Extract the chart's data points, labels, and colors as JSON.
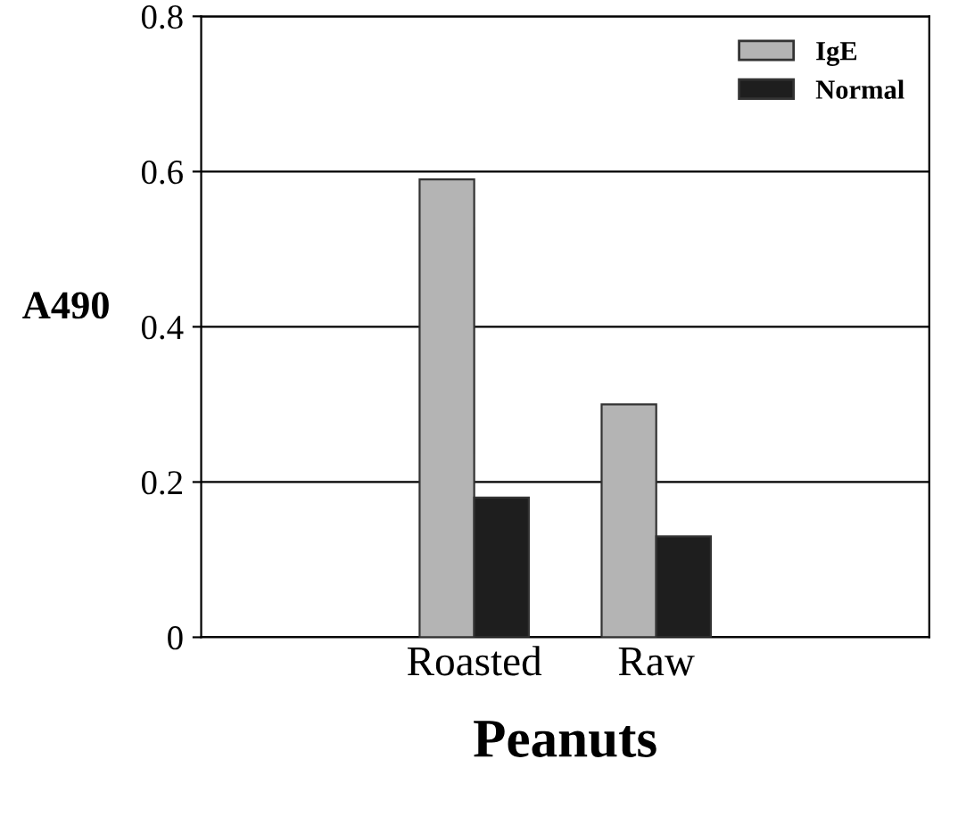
{
  "chart_data": {
    "type": "bar",
    "xlabel": "Peanuts",
    "ylabel": "A490",
    "categories": [
      null,
      "Roasted",
      "Raw",
      null
    ],
    "series": [
      {
        "name": "IgE",
        "color": "#b4b4b4",
        "values": [
          null,
          0.59,
          0.3,
          null
        ]
      },
      {
        "name": "Normal",
        "color": "#1e1e1e",
        "values": [
          null,
          0.18,
          0.13,
          null
        ]
      }
    ],
    "ylim": [
      0,
      0.8
    ],
    "yticks": [
      0,
      0.2,
      0.4,
      0.6,
      0.8
    ],
    "grid": "y",
    "legend": "top right"
  }
}
